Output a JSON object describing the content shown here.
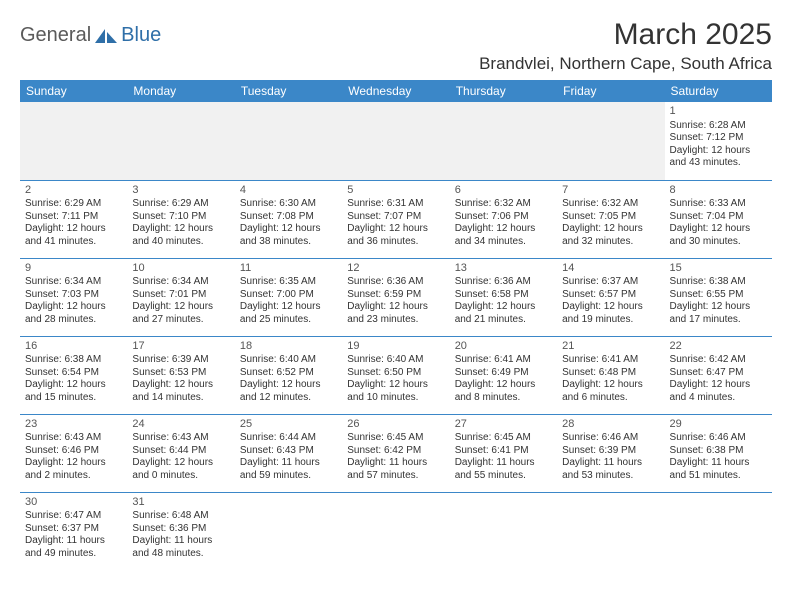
{
  "logo": {
    "part1": "General",
    "part2": "Blue"
  },
  "title": "March 2025",
  "location": "Brandvlei, Northern Cape, South Africa",
  "colors": {
    "header_bg": "#3b87c8",
    "header_text": "#ffffff",
    "cell_border": "#3b87c8",
    "blank_bg": "#f1f1f1",
    "text": "#333333",
    "logo_gray": "#5a5a5a",
    "logo_blue": "#2f6fa8"
  },
  "day_headers": [
    "Sunday",
    "Monday",
    "Tuesday",
    "Wednesday",
    "Thursday",
    "Friday",
    "Saturday"
  ],
  "weeks": [
    [
      null,
      null,
      null,
      null,
      null,
      null,
      {
        "n": "1",
        "sr": "Sunrise: 6:28 AM",
        "ss": "Sunset: 7:12 PM",
        "d1": "Daylight: 12 hours",
        "d2": "and 43 minutes."
      }
    ],
    [
      {
        "n": "2",
        "sr": "Sunrise: 6:29 AM",
        "ss": "Sunset: 7:11 PM",
        "d1": "Daylight: 12 hours",
        "d2": "and 41 minutes."
      },
      {
        "n": "3",
        "sr": "Sunrise: 6:29 AM",
        "ss": "Sunset: 7:10 PM",
        "d1": "Daylight: 12 hours",
        "d2": "and 40 minutes."
      },
      {
        "n": "4",
        "sr": "Sunrise: 6:30 AM",
        "ss": "Sunset: 7:08 PM",
        "d1": "Daylight: 12 hours",
        "d2": "and 38 minutes."
      },
      {
        "n": "5",
        "sr": "Sunrise: 6:31 AM",
        "ss": "Sunset: 7:07 PM",
        "d1": "Daylight: 12 hours",
        "d2": "and 36 minutes."
      },
      {
        "n": "6",
        "sr": "Sunrise: 6:32 AM",
        "ss": "Sunset: 7:06 PM",
        "d1": "Daylight: 12 hours",
        "d2": "and 34 minutes."
      },
      {
        "n": "7",
        "sr": "Sunrise: 6:32 AM",
        "ss": "Sunset: 7:05 PM",
        "d1": "Daylight: 12 hours",
        "d2": "and 32 minutes."
      },
      {
        "n": "8",
        "sr": "Sunrise: 6:33 AM",
        "ss": "Sunset: 7:04 PM",
        "d1": "Daylight: 12 hours",
        "d2": "and 30 minutes."
      }
    ],
    [
      {
        "n": "9",
        "sr": "Sunrise: 6:34 AM",
        "ss": "Sunset: 7:03 PM",
        "d1": "Daylight: 12 hours",
        "d2": "and 28 minutes."
      },
      {
        "n": "10",
        "sr": "Sunrise: 6:34 AM",
        "ss": "Sunset: 7:01 PM",
        "d1": "Daylight: 12 hours",
        "d2": "and 27 minutes."
      },
      {
        "n": "11",
        "sr": "Sunrise: 6:35 AM",
        "ss": "Sunset: 7:00 PM",
        "d1": "Daylight: 12 hours",
        "d2": "and 25 minutes."
      },
      {
        "n": "12",
        "sr": "Sunrise: 6:36 AM",
        "ss": "Sunset: 6:59 PM",
        "d1": "Daylight: 12 hours",
        "d2": "and 23 minutes."
      },
      {
        "n": "13",
        "sr": "Sunrise: 6:36 AM",
        "ss": "Sunset: 6:58 PM",
        "d1": "Daylight: 12 hours",
        "d2": "and 21 minutes."
      },
      {
        "n": "14",
        "sr": "Sunrise: 6:37 AM",
        "ss": "Sunset: 6:57 PM",
        "d1": "Daylight: 12 hours",
        "d2": "and 19 minutes."
      },
      {
        "n": "15",
        "sr": "Sunrise: 6:38 AM",
        "ss": "Sunset: 6:55 PM",
        "d1": "Daylight: 12 hours",
        "d2": "and 17 minutes."
      }
    ],
    [
      {
        "n": "16",
        "sr": "Sunrise: 6:38 AM",
        "ss": "Sunset: 6:54 PM",
        "d1": "Daylight: 12 hours",
        "d2": "and 15 minutes."
      },
      {
        "n": "17",
        "sr": "Sunrise: 6:39 AM",
        "ss": "Sunset: 6:53 PM",
        "d1": "Daylight: 12 hours",
        "d2": "and 14 minutes."
      },
      {
        "n": "18",
        "sr": "Sunrise: 6:40 AM",
        "ss": "Sunset: 6:52 PM",
        "d1": "Daylight: 12 hours",
        "d2": "and 12 minutes."
      },
      {
        "n": "19",
        "sr": "Sunrise: 6:40 AM",
        "ss": "Sunset: 6:50 PM",
        "d1": "Daylight: 12 hours",
        "d2": "and 10 minutes."
      },
      {
        "n": "20",
        "sr": "Sunrise: 6:41 AM",
        "ss": "Sunset: 6:49 PM",
        "d1": "Daylight: 12 hours",
        "d2": "and 8 minutes."
      },
      {
        "n": "21",
        "sr": "Sunrise: 6:41 AM",
        "ss": "Sunset: 6:48 PM",
        "d1": "Daylight: 12 hours",
        "d2": "and 6 minutes."
      },
      {
        "n": "22",
        "sr": "Sunrise: 6:42 AM",
        "ss": "Sunset: 6:47 PM",
        "d1": "Daylight: 12 hours",
        "d2": "and 4 minutes."
      }
    ],
    [
      {
        "n": "23",
        "sr": "Sunrise: 6:43 AM",
        "ss": "Sunset: 6:46 PM",
        "d1": "Daylight: 12 hours",
        "d2": "and 2 minutes."
      },
      {
        "n": "24",
        "sr": "Sunrise: 6:43 AM",
        "ss": "Sunset: 6:44 PM",
        "d1": "Daylight: 12 hours",
        "d2": "and 0 minutes."
      },
      {
        "n": "25",
        "sr": "Sunrise: 6:44 AM",
        "ss": "Sunset: 6:43 PM",
        "d1": "Daylight: 11 hours",
        "d2": "and 59 minutes."
      },
      {
        "n": "26",
        "sr": "Sunrise: 6:45 AM",
        "ss": "Sunset: 6:42 PM",
        "d1": "Daylight: 11 hours",
        "d2": "and 57 minutes."
      },
      {
        "n": "27",
        "sr": "Sunrise: 6:45 AM",
        "ss": "Sunset: 6:41 PM",
        "d1": "Daylight: 11 hours",
        "d2": "and 55 minutes."
      },
      {
        "n": "28",
        "sr": "Sunrise: 6:46 AM",
        "ss": "Sunset: 6:39 PM",
        "d1": "Daylight: 11 hours",
        "d2": "and 53 minutes."
      },
      {
        "n": "29",
        "sr": "Sunrise: 6:46 AM",
        "ss": "Sunset: 6:38 PM",
        "d1": "Daylight: 11 hours",
        "d2": "and 51 minutes."
      }
    ],
    [
      {
        "n": "30",
        "sr": "Sunrise: 6:47 AM",
        "ss": "Sunset: 6:37 PM",
        "d1": "Daylight: 11 hours",
        "d2": "and 49 minutes."
      },
      {
        "n": "31",
        "sr": "Sunrise: 6:48 AM",
        "ss": "Sunset: 6:36 PM",
        "d1": "Daylight: 11 hours",
        "d2": "and 48 minutes."
      },
      null,
      null,
      null,
      null,
      null
    ]
  ]
}
